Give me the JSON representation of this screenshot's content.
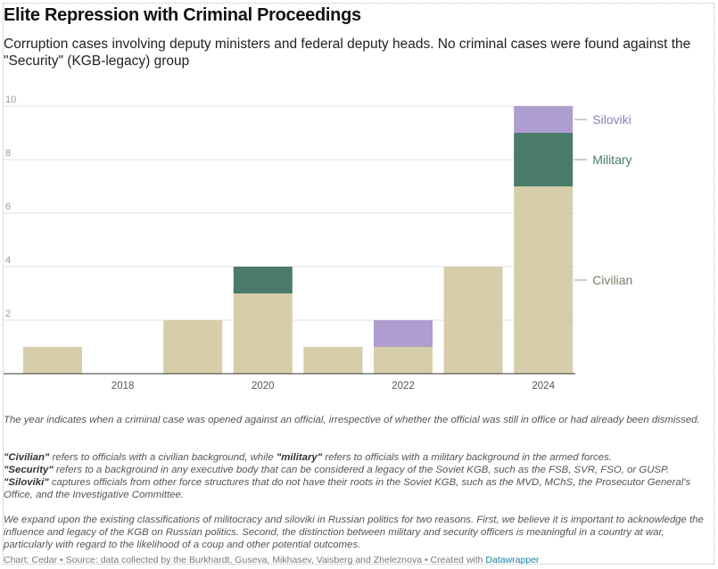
{
  "title": "Elite Repression with Criminal Proceedings",
  "subtitle": "Corruption cases involving deputy ministers and federal deputy heads. No criminal cases were found against the \"Security\" (KGB-legacy) group",
  "chart_data": {
    "type": "bar",
    "stacked": true,
    "years": [
      2017,
      2018,
      2019,
      2020,
      2021,
      2022,
      2023,
      2024
    ],
    "x_tick_labels": [
      "2018",
      "2020",
      "2022",
      "2024"
    ],
    "y_ticks": [
      "2",
      "4",
      "6",
      "8",
      "10"
    ],
    "ylim": [
      0,
      10
    ],
    "series": [
      {
        "name": "Civilian",
        "color": "#d6ceaa",
        "label_color": "#7d7d6a",
        "values": [
          1,
          0,
          2,
          3,
          1,
          1,
          4,
          7
        ]
      },
      {
        "name": "Military",
        "color": "#4a7b6a",
        "label_color": "#4a7b6a",
        "values": [
          0,
          0,
          0,
          1,
          0,
          0,
          0,
          2
        ]
      },
      {
        "name": "Siloviki",
        "color": "#ae9dcf",
        "label_color": "#8f7bb8",
        "values": [
          0,
          0,
          0,
          0,
          0,
          1,
          0,
          1
        ]
      }
    ],
    "legend_position": "direct-labels-right"
  },
  "notes": {
    "p1": "The year indicates when a criminal case was opened against an official, irrespective of whether the official was still in office or had already been dismissed.",
    "civilian_term": "\"Civilian\"",
    "civilian_mid": " refers to officials with a civilian background, while ",
    "military_term": "\"military\"",
    "military_rest": " refers to officials with a military background in the armed forces.",
    "security_term": "\"Security\"",
    "security_rest": " refers to a background in any executive body that can be considered a legacy of the Soviet KGB, such as the FSB, SVR, FSO, or GUSP.",
    "siloviki_term": "\"Siloviki\"",
    "siloviki_rest": " captures officials from other force structures that do not have their roots in the Soviet KGB, such as the MVD, MChS, the Prosecutor General's Office, and the Investigative Committee.",
    "p3": "We expand upon the existing classifications of militocracy and siloviki in Russian politics for two reasons. First, we believe it is important to acknowledge the influence and legacy of the KGB on Russian politics. Second, the distinction between military and security officers is meaningful in a country at war, particularly with regard to the likelihood of a coup and other potential outcomes."
  },
  "footer": {
    "text": "Chart: Cedar • Source: data collected by the Burkhardt, Guseva, Mikhasev, Vaisberg and Zheleznova • Created with ",
    "link": "Datawrapper"
  }
}
